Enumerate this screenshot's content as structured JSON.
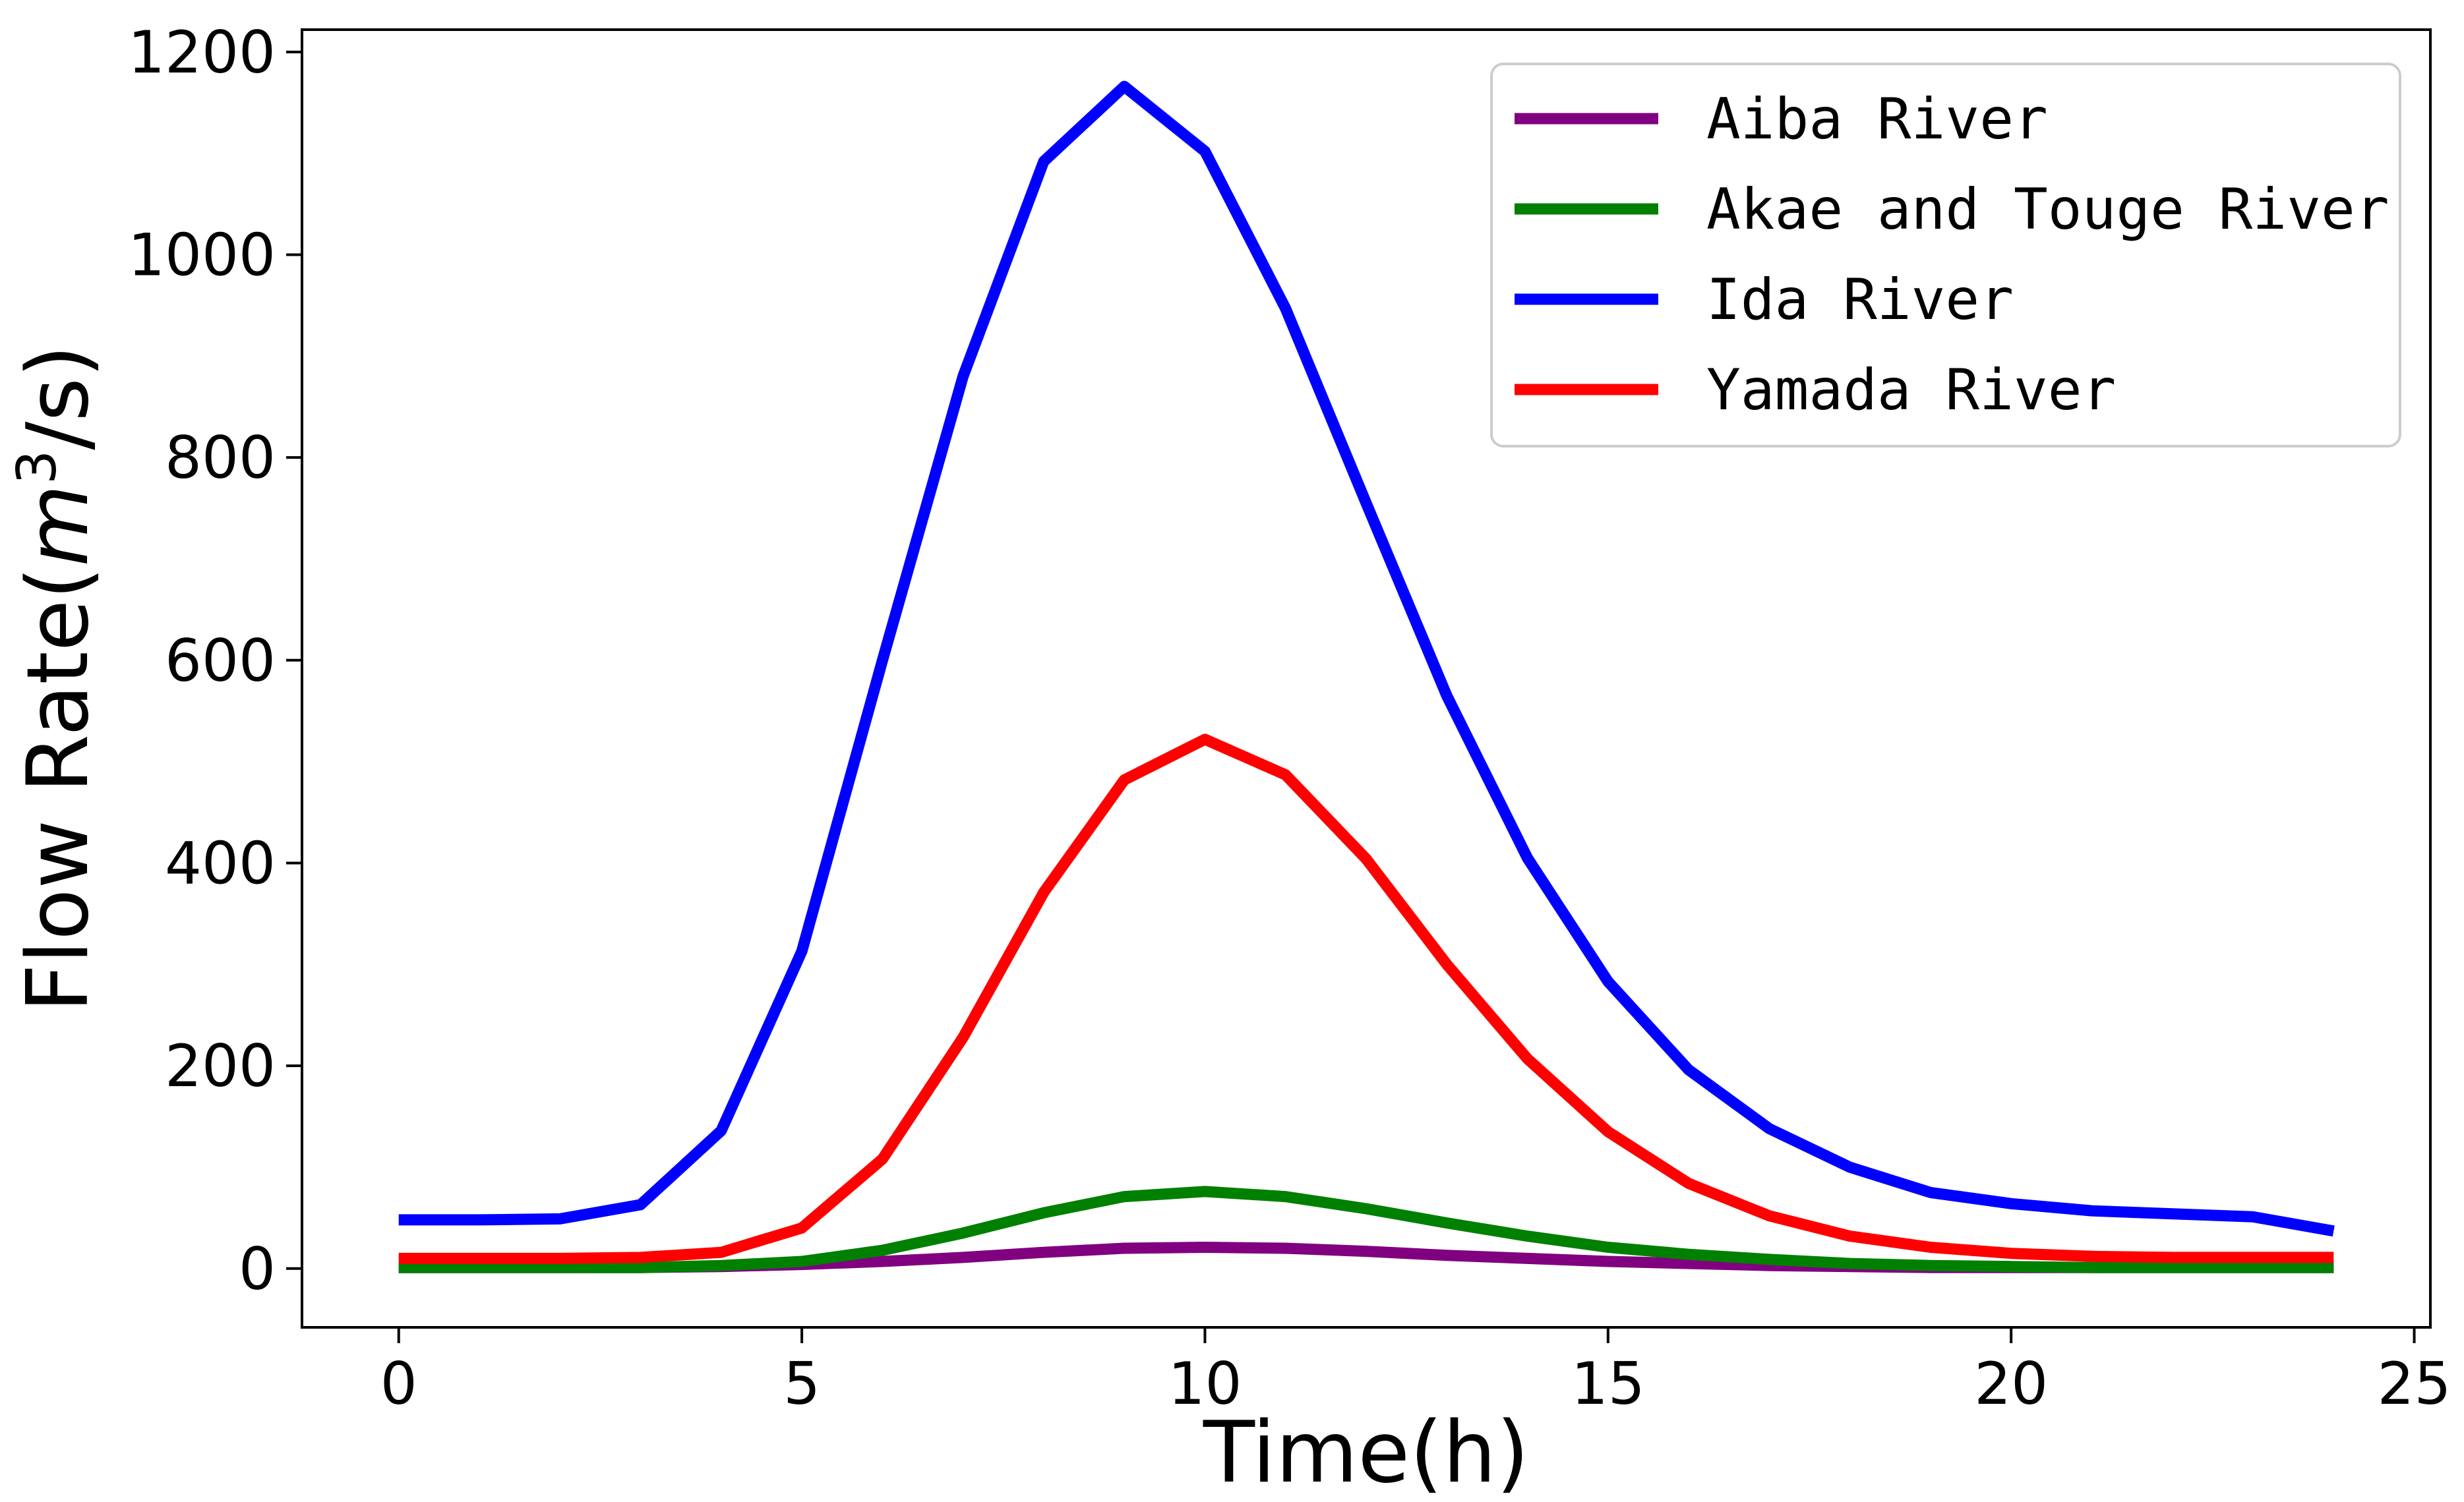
{
  "chart_data": {
    "type": "line",
    "title": "",
    "xlabel": "Time(h)",
    "ylabel_prefix": "Flow Rate(",
    "ylabel_var": "m",
    "ylabel_sup": "3",
    "ylabel_suffix": "/s)",
    "xlim": [
      -1.2,
      25.2
    ],
    "ylim": [
      -58,
      1222
    ],
    "xticks": [
      0,
      5,
      10,
      15,
      20,
      25
    ],
    "yticks": [
      0,
      200,
      400,
      600,
      800,
      1000,
      1200
    ],
    "xtick_labels": [
      "0",
      "5",
      "10",
      "15",
      "20",
      "25"
    ],
    "ytick_labels": [
      "0",
      "200",
      "400",
      "600",
      "800",
      "1000",
      "1200"
    ],
    "grid": false,
    "legend_position": "top-right",
    "x": [
      0,
      1,
      2,
      3,
      4,
      5,
      6,
      7,
      8,
      9,
      10,
      11,
      12,
      13,
      14,
      15,
      16,
      17,
      18,
      19,
      20,
      21,
      22,
      23,
      24
    ],
    "series": [
      {
        "name": "Aiba River",
        "color": "#800080",
        "values": [
          1,
          1,
          1,
          1,
          2,
          4,
          7,
          11,
          16,
          20,
          21,
          20,
          17,
          13,
          10,
          7,
          5,
          3,
          2,
          1,
          1,
          1,
          1,
          1,
          1
        ]
      },
      {
        "name": "Akae and Touge River",
        "color": "#008000",
        "values": [
          1,
          1,
          1,
          1,
          3,
          7,
          18,
          35,
          55,
          71,
          76,
          71,
          59,
          45,
          32,
          21,
          14,
          9,
          5,
          3,
          2,
          1,
          1,
          1,
          1
        ]
      },
      {
        "name": "Ida River",
        "color": "#0000ff",
        "values": [
          48,
          48,
          49,
          63,
          136,
          313,
          600,
          880,
          1092,
          1166,
          1102,
          947,
          755,
          565,
          405,
          283,
          196,
          138,
          100,
          75,
          64,
          57,
          54,
          51,
          37
        ]
      },
      {
        "name": "Yamada River",
        "color": "#ff0000",
        "values": [
          10,
          10,
          10,
          11,
          16,
          40,
          108,
          228,
          371,
          482,
          522,
          487,
          404,
          300,
          207,
          135,
          84,
          52,
          32,
          21,
          15,
          12,
          11,
          11,
          11
        ]
      }
    ]
  }
}
